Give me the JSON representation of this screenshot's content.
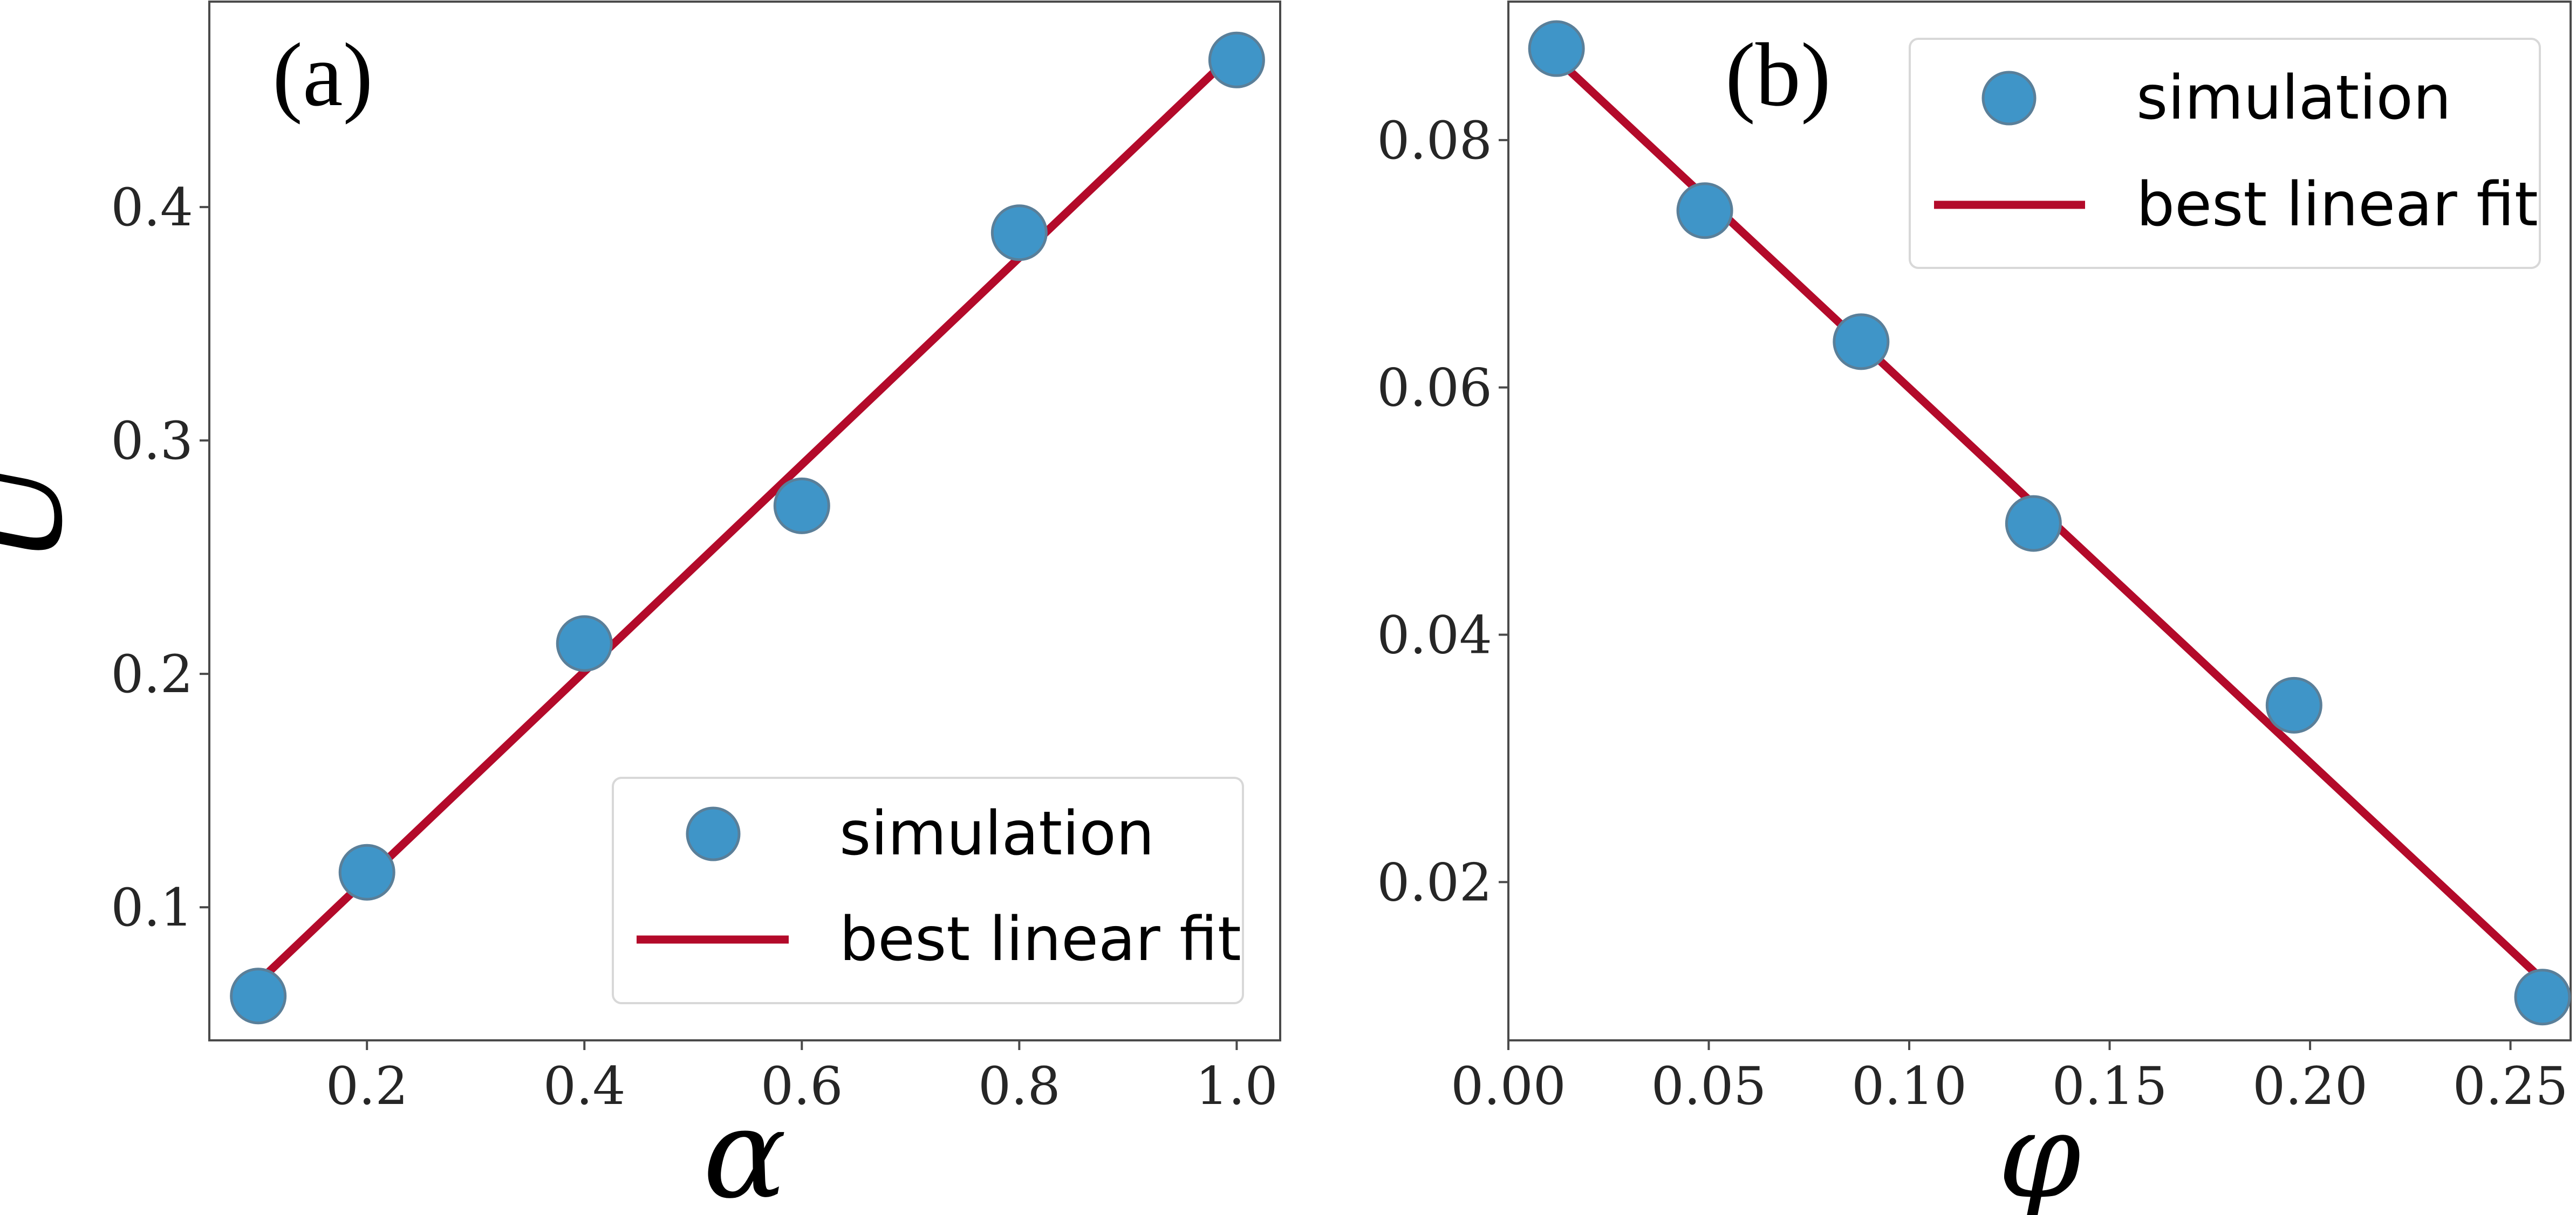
{
  "colors": {
    "marker": "#3f95c8",
    "marker_edge": "#5a7f99",
    "fit": "#b30a2a",
    "axes": "#4a4a4a",
    "legend_edge": "#d8d8d8"
  },
  "chart_data": [
    {
      "type": "scatter",
      "panel_label": "(a)",
      "xlabel": "α",
      "ylabel": "U",
      "xlim": [
        0.055,
        1.04
      ],
      "ylim": [
        0.043,
        0.488
      ],
      "xticks": [
        0.2,
        0.4,
        0.6,
        0.8,
        1.0
      ],
      "xtick_labels": [
        "0.2",
        "0.4",
        "0.6",
        "0.8",
        "1.0"
      ],
      "yticks": [
        0.1,
        0.2,
        0.3,
        0.4
      ],
      "ytick_labels": [
        "0.1",
        "0.2",
        "0.3",
        "0.4"
      ],
      "legend_position": "lower-right",
      "series": [
        {
          "name": "simulation",
          "kind": "scatter",
          "x": [
            0.1,
            0.2,
            0.4,
            0.6,
            0.8,
            1.0
          ],
          "y": [
            0.062,
            0.115,
            0.213,
            0.272,
            0.389,
            0.463
          ]
        },
        {
          "name": "best linear fit",
          "kind": "line",
          "x": [
            0.1,
            1.0
          ],
          "y": [
            0.068,
            0.467
          ]
        }
      ]
    },
    {
      "type": "scatter",
      "panel_label": "(b)",
      "xlabel": "φ",
      "ylabel": "",
      "xlim": [
        0.0,
        0.265
      ],
      "ylim": [
        0.0072,
        0.0912
      ],
      "xticks": [
        0.0,
        0.05,
        0.1,
        0.15,
        0.2,
        0.25
      ],
      "xtick_labels": [
        "0.00",
        "0.05",
        "0.10",
        "0.15",
        "0.20",
        "0.25"
      ],
      "yticks": [
        0.02,
        0.04,
        0.06,
        0.08
      ],
      "ytick_labels": [
        "0.02",
        "0.04",
        "0.06",
        "0.08"
      ],
      "legend_position": "upper-right",
      "series": [
        {
          "name": "simulation",
          "kind": "scatter",
          "x": [
            0.012,
            0.049,
            0.088,
            0.131,
            0.196,
            0.258
          ],
          "y": [
            0.0874,
            0.0743,
            0.0637,
            0.049,
            0.0343,
            0.0107
          ]
        },
        {
          "name": "best linear fit",
          "kind": "line",
          "x": [
            0.012,
            0.258
          ],
          "y": [
            0.0866,
            0.0121
          ]
        }
      ]
    }
  ]
}
